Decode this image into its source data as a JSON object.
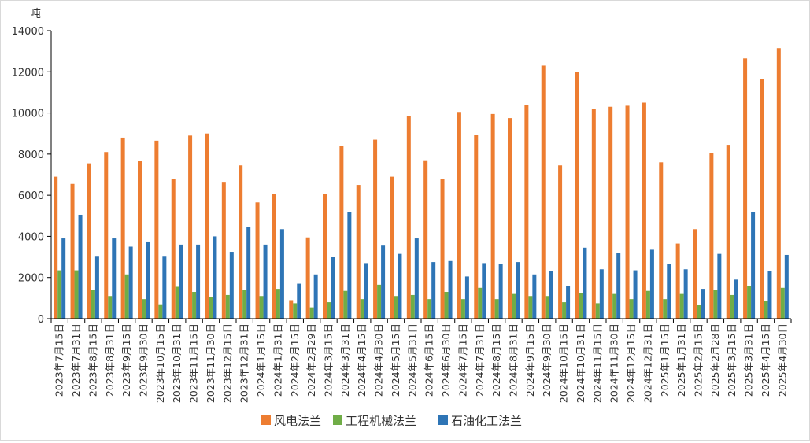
{
  "chart_data": {
    "type": "bar",
    "y_unit": "吨",
    "ylim": [
      0,
      14000
    ],
    "y_ticks": [
      0,
      2000,
      4000,
      6000,
      8000,
      10000,
      12000,
      14000
    ],
    "grid": false,
    "legend_position": "bottom",
    "categories": [
      "2023年7月15日",
      "2023年7月31日",
      "2023年8月15日",
      "2023年8月31日",
      "2023年9月15日",
      "2023年9月30日",
      "2023年10月15日",
      "2023年10月31日",
      "2023年11月15日",
      "2023年11月30日",
      "2023年12月15日",
      "2023年12月31日",
      "2024年1月15日",
      "2024年1月31日",
      "2024年2月15日",
      "2024年2月29日",
      "2024年3月15日",
      "2024年3月31日",
      "2024年4月15日",
      "2024年4月30日",
      "2024年5月15日",
      "2024年5月31日",
      "2024年6月15日",
      "2024年6月30日",
      "2024年7月15日",
      "2024年7月31日",
      "2024年8月15日",
      "2024年8月31日",
      "2024年9月15日",
      "2024年9月30日",
      "2024年10月15日",
      "2024年10月31日",
      "2024年11月15日",
      "2024年11月30日",
      "2024年12月15日",
      "2024年12月31日",
      "2025年1月15日",
      "2025年1月31日",
      "2025年2月15日",
      "2025年2月28日",
      "2025年3月15日",
      "2025年3月31日",
      "2025年4月15日",
      "2025年4月30日"
    ],
    "series": [
      {
        "name": "风电法兰",
        "color": "#ED7D31",
        "values": [
          6900,
          6550,
          7550,
          8100,
          8800,
          7650,
          8650,
          6800,
          8900,
          9000,
          6650,
          7450,
          5650,
          6050,
          900,
          3950,
          6050,
          8400,
          6500,
          8700,
          6900,
          9850,
          7700,
          6800,
          10050,
          8950,
          9950,
          9750,
          10400,
          12300,
          7450,
          12000,
          10200,
          10300,
          10350,
          10500,
          7600,
          3650,
          4350,
          8050,
          8450,
          12650,
          11650,
          13150
        ]
      },
      {
        "name": "工程机械法兰",
        "color": "#70AD47",
        "values": [
          2350,
          2350,
          1400,
          1100,
          2150,
          950,
          700,
          1550,
          1300,
          1050,
          1150,
          1400,
          1100,
          1450,
          750,
          550,
          800,
          1350,
          950,
          1650,
          1100,
          1150,
          950,
          1300,
          950,
          1500,
          950,
          1200,
          1100,
          1100,
          800,
          1250,
          750,
          1200,
          950,
          1350,
          950,
          1200,
          650,
          1400,
          1150,
          1600,
          850,
          1500
        ]
      },
      {
        "name": "石油化工法兰",
        "color": "#2E75B6",
        "values": [
          3900,
          5050,
          3050,
          3900,
          3500,
          3750,
          3050,
          3600,
          3600,
          4000,
          3250,
          4450,
          3600,
          4350,
          1700,
          2150,
          3000,
          5200,
          2700,
          3550,
          3150,
          3900,
          2750,
          2800,
          2050,
          2700,
          2650,
          2750,
          2150,
          2300,
          1600,
          3450,
          2400,
          3200,
          2350,
          3350,
          2650,
          2400,
          1450,
          3150,
          1900,
          5200,
          2300,
          3100
        ]
      }
    ]
  }
}
